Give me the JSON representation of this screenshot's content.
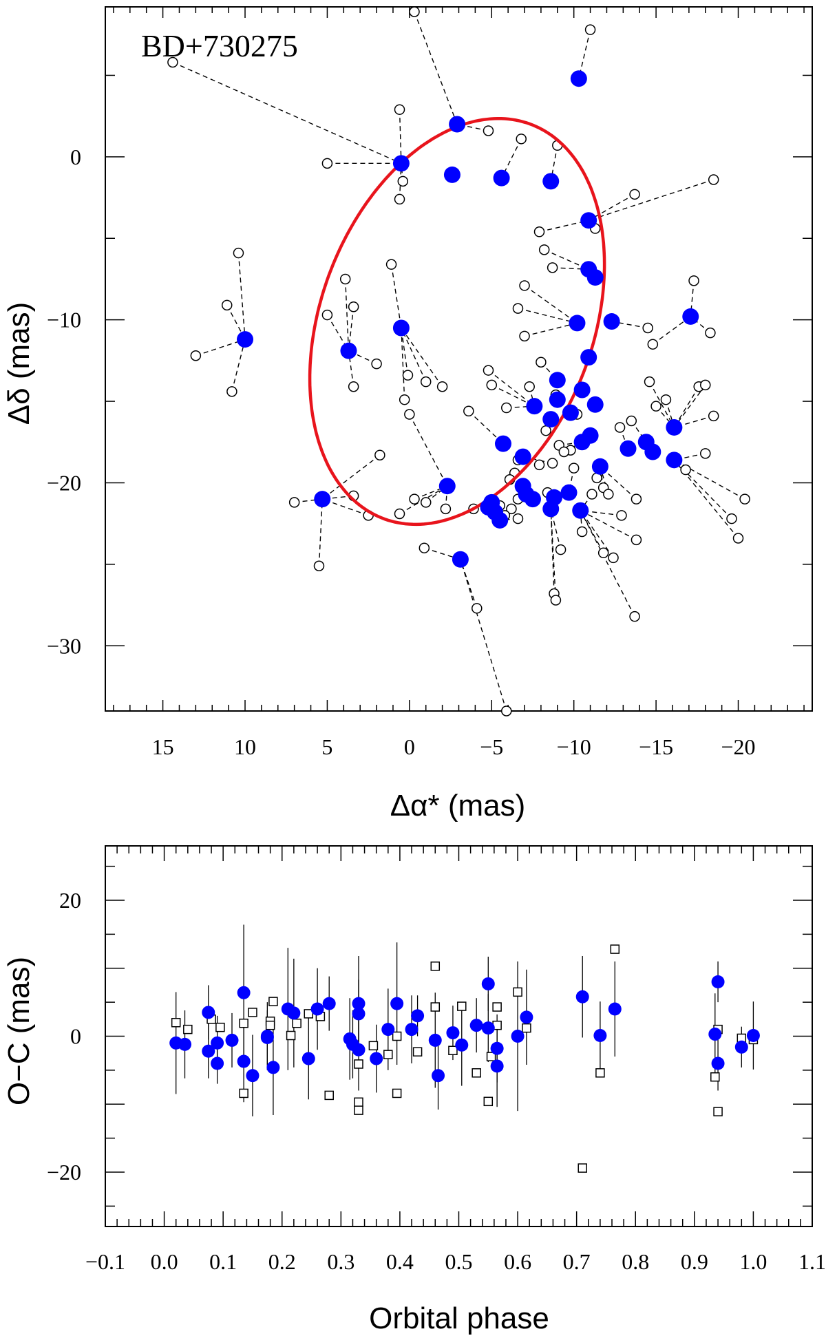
{
  "colors": {
    "fitted_points": "#0000ff",
    "orbit_ellipse": "#e8141c",
    "observed_points": "#000000",
    "background": "#ffffff"
  },
  "chart_data": [
    {
      "type": "scatter",
      "id": "astrometric-orbit",
      "title": "BD+730275",
      "xlabel": "Δα* (mas)",
      "ylabel": "Δδ (mas)",
      "xlim": [
        18.5,
        -24.5
      ],
      "ylim": [
        -34.0,
        9.2
      ],
      "x_ticks": [
        15,
        10,
        5,
        0,
        -5,
        -10,
        -15,
        -20
      ],
      "x_tick_labels": [
        "15",
        "10",
        "5",
        "0",
        "−5",
        "−10",
        "−15",
        "−20"
      ],
      "y_ticks": [
        0,
        -10,
        -20,
        -30
      ],
      "y_tick_labels": [
        "0",
        "−10",
        "−20",
        "−30"
      ],
      "orbit_ellipse": {
        "center": [
          -2.9,
          -10.1
        ],
        "semi_major": 12.9,
        "semi_minor": 8.3,
        "angle_deg": -70
      },
      "series": [
        {
          "name": "fitted positions",
          "marker": "filled circle",
          "points": [
            [
              -10.3,
              4.8
            ],
            [
              -2.9,
              2.0
            ],
            [
              0.5,
              -0.4
            ],
            [
              -2.6,
              -1.1
            ],
            [
              -5.6,
              -1.3
            ],
            [
              -8.6,
              -1.5
            ],
            [
              -10.9,
              -3.9
            ],
            [
              -10.9,
              -6.9
            ],
            [
              -11.3,
              -7.4
            ],
            [
              -12.3,
              -10.1
            ],
            [
              -10.2,
              -10.2
            ],
            [
              0.5,
              -10.5
            ],
            [
              -17.1,
              -9.8
            ],
            [
              10.0,
              -11.2
            ],
            [
              3.7,
              -11.9
            ],
            [
              -10.9,
              -12.3
            ],
            [
              -9.0,
              -13.7
            ],
            [
              -10.5,
              -14.3
            ],
            [
              -9.0,
              -14.9
            ],
            [
              -7.6,
              -15.3
            ],
            [
              -9.8,
              -15.7
            ],
            [
              -11.3,
              -15.2
            ],
            [
              -8.6,
              -16.1
            ],
            [
              -16.1,
              -16.6
            ],
            [
              -11.0,
              -17.1
            ],
            [
              -10.5,
              -17.5
            ],
            [
              -14.4,
              -17.5
            ],
            [
              -13.3,
              -17.9
            ],
            [
              -14.8,
              -18.1
            ],
            [
              -5.7,
              -17.6
            ],
            [
              -6.9,
              -18.4
            ],
            [
              -16.1,
              -18.6
            ],
            [
              -11.6,
              -19.0
            ],
            [
              -6.9,
              -20.2
            ],
            [
              -2.3,
              -20.2
            ],
            [
              -9.7,
              -20.6
            ],
            [
              -7.1,
              -20.7
            ],
            [
              -7.5,
              -21.0
            ],
            [
              -8.8,
              -20.9
            ],
            [
              -5.0,
              -21.2
            ],
            [
              5.3,
              -21.0
            ],
            [
              -4.8,
              -21.5
            ],
            [
              -5.2,
              -21.8
            ],
            [
              -8.6,
              -21.6
            ],
            [
              -10.4,
              -21.7
            ],
            [
              -5.5,
              -22.3
            ],
            [
              -3.1,
              -24.7
            ]
          ]
        },
        {
          "name": "observed positions",
          "marker": "open circle",
          "points": [
            [
              -0.3,
              8.9
            ],
            [
              -11.0,
              7.8
            ],
            [
              14.4,
              5.8
            ],
            [
              0.6,
              2.9
            ],
            [
              -4.8,
              1.6
            ],
            [
              -6.8,
              1.1
            ],
            [
              -9.0,
              0.7
            ],
            [
              5.0,
              -0.4
            ],
            [
              -18.5,
              -1.4
            ],
            [
              0.4,
              -1.5
            ],
            [
              0.6,
              -2.6
            ],
            [
              -13.7,
              -2.3
            ],
            [
              -11.3,
              -4.4
            ],
            [
              -7.9,
              -4.6
            ],
            [
              1.1,
              -6.6
            ],
            [
              -8.2,
              -5.7
            ],
            [
              -8.7,
              -6.8
            ],
            [
              10.4,
              -5.9
            ],
            [
              -7.0,
              -7.9
            ],
            [
              -17.3,
              -7.6
            ],
            [
              3.9,
              -7.5
            ],
            [
              11.1,
              -9.1
            ],
            [
              3.4,
              -9.2
            ],
            [
              -6.6,
              -9.3
            ],
            [
              5.0,
              -9.7
            ],
            [
              -17.0,
              -9.9
            ],
            [
              -7.0,
              -11.0
            ],
            [
              -14.5,
              -10.5
            ],
            [
              13.0,
              -12.2
            ],
            [
              -18.3,
              -10.8
            ],
            [
              -14.8,
              -11.5
            ],
            [
              -8.0,
              -12.6
            ],
            [
              2.0,
              -12.7
            ],
            [
              0.1,
              -13.4
            ],
            [
              -1.0,
              -13.8
            ],
            [
              -2.0,
              -14.1
            ],
            [
              -4.8,
              -13.1
            ],
            [
              -7.3,
              -14.1
            ],
            [
              -14.6,
              -13.8
            ],
            [
              -17.6,
              -14.1
            ],
            [
              3.4,
              -14.1
            ],
            [
              10.8,
              -14.4
            ],
            [
              0.3,
              -14.9
            ],
            [
              -5.0,
              -14.0
            ],
            [
              -8.9,
              -14.6
            ],
            [
              -18.0,
              -14.0
            ],
            [
              -15.0,
              -15.3
            ],
            [
              -15.6,
              -14.9
            ],
            [
              -5.9,
              -15.4
            ],
            [
              -3.6,
              -15.6
            ],
            [
              -10.2,
              -15.8
            ],
            [
              0.0,
              -15.8
            ],
            [
              -18.5,
              -15.9
            ],
            [
              -13.5,
              -16.2
            ],
            [
              -8.3,
              -16.8
            ],
            [
              -12.8,
              -16.6
            ],
            [
              -9.1,
              -17.7
            ],
            [
              -9.8,
              -18.0
            ],
            [
              -6.6,
              -18.6
            ],
            [
              -7.9,
              -18.9
            ],
            [
              -8.7,
              -18.8
            ],
            [
              -9.4,
              -18.1
            ],
            [
              1.8,
              -18.3
            ],
            [
              -18.0,
              -18.2
            ],
            [
              -16.8,
              -19.2
            ],
            [
              -10.0,
              -19.1
            ],
            [
              -6.4,
              -19.4
            ],
            [
              -6.1,
              -19.8
            ],
            [
              -11.4,
              -19.7
            ],
            [
              -11.8,
              -20.3
            ],
            [
              -8.4,
              -20.6
            ],
            [
              -20.4,
              -21.0
            ],
            [
              3.4,
              -20.8
            ],
            [
              7.0,
              -21.2
            ],
            [
              -0.3,
              -21.0
            ],
            [
              -1.0,
              -21.2
            ],
            [
              -6.6,
              -21.0
            ],
            [
              -11.1,
              -20.7
            ],
            [
              -12.1,
              -20.7
            ],
            [
              -13.8,
              -21.0
            ],
            [
              2.5,
              -22.0
            ],
            [
              -2.2,
              -21.6
            ],
            [
              -3.9,
              -21.6
            ],
            [
              -5.5,
              -21.4
            ],
            [
              -6.2,
              -21.6
            ],
            [
              -5.8,
              -22.0
            ],
            [
              -6.6,
              -22.2
            ],
            [
              0.6,
              -21.9
            ],
            [
              -12.9,
              -22.0
            ],
            [
              -19.6,
              -22.2
            ],
            [
              -10.5,
              -23.0
            ],
            [
              -9.2,
              -24.1
            ],
            [
              -20.0,
              -23.4
            ],
            [
              -13.8,
              -23.5
            ],
            [
              -11.8,
              -24.3
            ],
            [
              -12.4,
              -24.6
            ],
            [
              -0.9,
              -24.0
            ],
            [
              5.5,
              -25.1
            ],
            [
              -8.8,
              -26.8
            ],
            [
              -8.9,
              -27.2
            ],
            [
              -4.1,
              -27.7
            ],
            [
              -13.7,
              -28.2
            ],
            [
              -5.9,
              -34.0
            ]
          ]
        }
      ]
    },
    {
      "type": "scatter",
      "id": "residuals-vs-phase",
      "xlabel": "Orbital phase",
      "ylabel": "O−C (mas)",
      "xlim": [
        -0.1,
        1.1
      ],
      "ylim": [
        -28.0,
        28.0
      ],
      "x_ticks": [
        -0.1,
        0.0,
        0.1,
        0.2,
        0.3,
        0.4,
        0.5,
        0.6,
        0.7,
        0.8,
        0.9,
        1.0,
        1.1
      ],
      "x_tick_labels": [
        "−0.1",
        "0.0",
        "0.1",
        "0.2",
        "0.3",
        "0.4",
        "0.5",
        "0.6",
        "0.7",
        "0.8",
        "0.9",
        "1.0",
        "1.1"
      ],
      "y_ticks": [
        20,
        0,
        -20
      ],
      "y_tick_labels": [
        "20",
        "0",
        "−20"
      ],
      "series": [
        {
          "name": "residuals (filled)",
          "marker": "filled circle with error bar",
          "points": [
            [
              0.02,
              -1.0,
              7.5
            ],
            [
              0.035,
              -1.2,
              5.0
            ],
            [
              0.075,
              3.5,
              4.0
            ],
            [
              0.075,
              -2.2,
              4.0
            ],
            [
              0.09,
              -1.0,
              4.0
            ],
            [
              0.09,
              -4.0,
              3.0
            ],
            [
              0.115,
              -0.6,
              4.0
            ],
            [
              0.135,
              6.4,
              10.0
            ],
            [
              0.135,
              -3.7,
              6.0
            ],
            [
              0.15,
              -5.8,
              6.0
            ],
            [
              0.175,
              -0.2,
              4.0
            ],
            [
              0.175,
              0.0,
              5.0
            ],
            [
              0.185,
              -4.6,
              7.0
            ],
            [
              0.21,
              4.0,
              9.0
            ],
            [
              0.22,
              3.4,
              8.0
            ],
            [
              0.245,
              -3.3,
              6.0
            ],
            [
              0.26,
              4.0,
              6.0
            ],
            [
              0.28,
              4.8,
              4.0
            ],
            [
              0.315,
              -0.4,
              6.0
            ],
            [
              0.32,
              -1.2,
              5.0
            ],
            [
              0.33,
              4.8,
              7.0
            ],
            [
              0.33,
              3.3,
              5.0
            ],
            [
              0.33,
              -2.0,
              6.0
            ],
            [
              0.36,
              -3.3,
              5.0
            ],
            [
              0.38,
              1.0,
              6.0
            ],
            [
              0.395,
              4.8,
              9.0
            ],
            [
              0.42,
              1.0,
              5.0
            ],
            [
              0.43,
              3.0,
              3.0
            ],
            [
              0.46,
              -0.6,
              7.0
            ],
            [
              0.465,
              -5.8,
              5.0
            ],
            [
              0.49,
              0.5,
              4.0
            ],
            [
              0.505,
              -1.3,
              6.0
            ],
            [
              0.53,
              1.6,
              4.0
            ],
            [
              0.55,
              7.7,
              4.0
            ],
            [
              0.55,
              1.2,
              5.0
            ],
            [
              0.565,
              -1.8,
              5.0
            ],
            [
              0.565,
              -4.4,
              6.0
            ],
            [
              0.6,
              0.0,
              11.0
            ],
            [
              0.615,
              2.8,
              7.0
            ],
            [
              0.71,
              5.8,
              6.0
            ],
            [
              0.74,
              0.1,
              5.0
            ],
            [
              0.765,
              4.0,
              7.0
            ],
            [
              0.935,
              0.3,
              6.0
            ],
            [
              0.94,
              8.0,
              3.0
            ],
            [
              0.94,
              -4.0,
              4.0
            ],
            [
              0.98,
              -1.6,
              3.0
            ],
            [
              1.0,
              0.1,
              5.0
            ]
          ]
        },
        {
          "name": "residuals (open)",
          "marker": "open square",
          "points": [
            [
              0.02,
              2.0
            ],
            [
              0.04,
              1.0
            ],
            [
              0.08,
              2.5
            ],
            [
              0.095,
              1.3
            ],
            [
              0.135,
              -8.4
            ],
            [
              0.135,
              1.9
            ],
            [
              0.15,
              3.5
            ],
            [
              0.18,
              2.2
            ],
            [
              0.18,
              1.6
            ],
            [
              0.185,
              5.1
            ],
            [
              0.215,
              0.1
            ],
            [
              0.225,
              1.9
            ],
            [
              0.245,
              3.3
            ],
            [
              0.265,
              2.9
            ],
            [
              0.28,
              -8.7
            ],
            [
              0.33,
              -4.1
            ],
            [
              0.33,
              -9.7
            ],
            [
              0.33,
              -10.9
            ],
            [
              0.355,
              -1.4
            ],
            [
              0.38,
              -2.7
            ],
            [
              0.395,
              0.0
            ],
            [
              0.395,
              -8.4
            ],
            [
              0.43,
              -2.3
            ],
            [
              0.46,
              4.3
            ],
            [
              0.46,
              10.3
            ],
            [
              0.49,
              -2.1
            ],
            [
              0.505,
              4.4
            ],
            [
              0.53,
              -5.4
            ],
            [
              0.55,
              -9.6
            ],
            [
              0.555,
              -3.0
            ],
            [
              0.565,
              4.3
            ],
            [
              0.565,
              1.6
            ],
            [
              0.6,
              6.5
            ],
            [
              0.615,
              1.2
            ],
            [
              0.71,
              -19.4
            ],
            [
              0.74,
              -5.4
            ],
            [
              0.765,
              12.8
            ],
            [
              0.935,
              -6.0
            ],
            [
              0.94,
              1.0
            ],
            [
              0.94,
              -11.1
            ],
            [
              0.98,
              -0.3
            ],
            [
              1.0,
              -0.5
            ]
          ]
        }
      ]
    }
  ]
}
